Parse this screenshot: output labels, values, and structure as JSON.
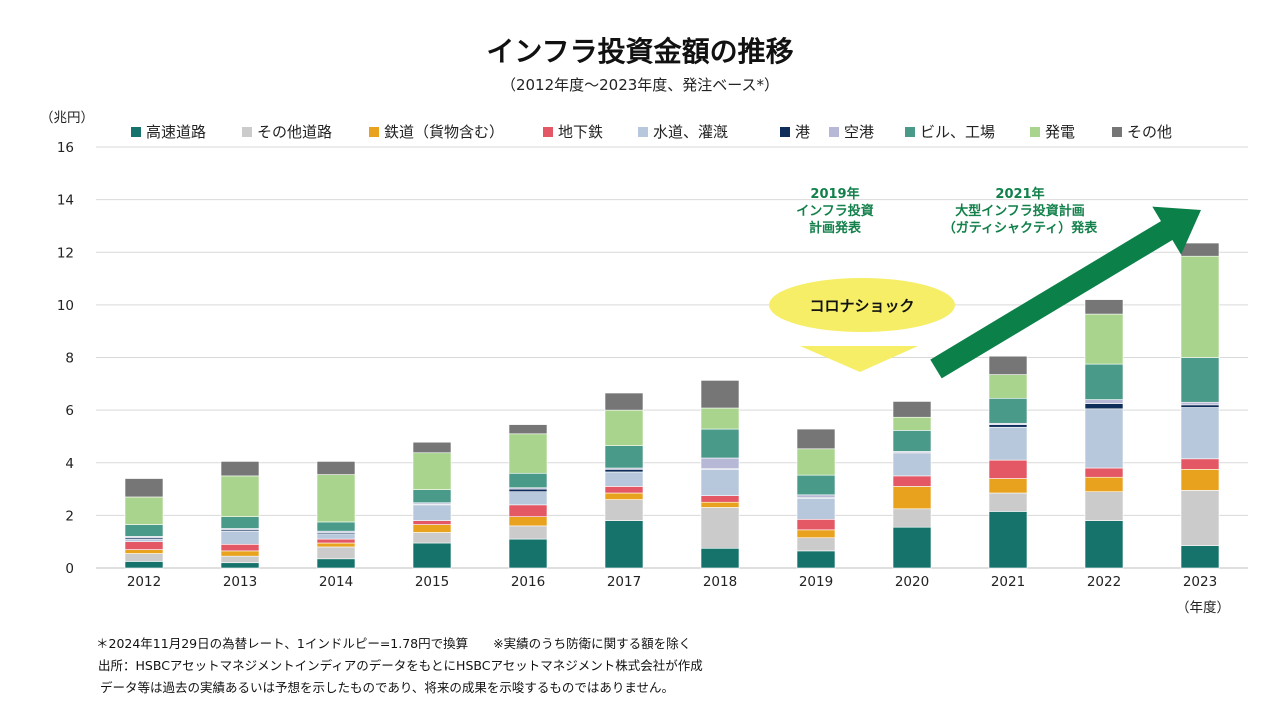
{
  "title": "インフラ投資金額の推移",
  "subtitle": "（2012年度～2023年度、発注ベース*）",
  "chart_data": {
    "type": "bar",
    "stacked": true,
    "ylabel": "（兆円）",
    "xlabel": "（年度）",
    "ylim": [
      0,
      16
    ],
    "yticks": [
      "0",
      "2",
      "4",
      "6",
      "8",
      "10",
      "12",
      "14",
      "16"
    ],
    "grid": true,
    "legend_position": "top",
    "categories": [
      "2012",
      "2013",
      "2014",
      "2015",
      "2016",
      "2017",
      "2018",
      "2019",
      "2020",
      "2021",
      "2022",
      "2023"
    ],
    "series": [
      {
        "name": "高速道路",
        "color": "#15736b",
        "values": [
          0.25,
          0.2,
          0.35,
          0.95,
          1.1,
          1.8,
          0.75,
          0.65,
          1.55,
          2.15,
          1.8,
          0.85
        ]
      },
      {
        "name": "その他道路",
        "color": "#cbcbcb",
        "values": [
          0.3,
          0.25,
          0.45,
          0.4,
          0.5,
          0.8,
          1.55,
          0.5,
          0.7,
          0.7,
          1.1,
          2.1
        ]
      },
      {
        "name": "鉄道（貨物含む）",
        "color": "#e8a21e",
        "values": [
          0.15,
          0.2,
          0.15,
          0.3,
          0.35,
          0.25,
          0.2,
          0.3,
          0.85,
          0.55,
          0.55,
          0.8
        ]
      },
      {
        "name": "地下鉄",
        "color": "#e45865",
        "values": [
          0.3,
          0.25,
          0.15,
          0.15,
          0.45,
          0.25,
          0.25,
          0.4,
          0.4,
          0.7,
          0.35,
          0.4
        ]
      },
      {
        "name": "水道、灌漑",
        "color": "#b7c8dc",
        "values": [
          0.1,
          0.5,
          0.2,
          0.6,
          0.5,
          0.55,
          1.0,
          0.8,
          0.85,
          1.25,
          2.25,
          1.95
        ]
      },
      {
        "name": "港",
        "color": "#0f2d5b",
        "values": [
          0.05,
          0.05,
          0.05,
          0.03,
          0.1,
          0.1,
          0.03,
          0.03,
          0.03,
          0.1,
          0.2,
          0.1
        ]
      },
      {
        "name": "空港",
        "color": "#b7b7d6",
        "values": [
          0.05,
          0.05,
          0.05,
          0.05,
          0.05,
          0.05,
          0.4,
          0.1,
          0.05,
          0.05,
          0.15,
          0.1
        ]
      },
      {
        "name": "ビル、工場",
        "color": "#4a9a8a",
        "values": [
          0.45,
          0.45,
          0.35,
          0.5,
          0.55,
          0.85,
          1.1,
          0.75,
          0.8,
          0.95,
          1.35,
          1.7
        ]
      },
      {
        "name": "発電",
        "color": "#a8d48d",
        "values": [
          1.05,
          1.55,
          1.8,
          1.4,
          1.5,
          1.35,
          0.8,
          1.0,
          0.5,
          0.9,
          1.9,
          3.85
        ]
      },
      {
        "name": "その他",
        "color": "#767676",
        "values": [
          0.7,
          0.55,
          0.5,
          0.4,
          0.35,
          0.65,
          1.05,
          0.75,
          0.6,
          0.7,
          0.55,
          0.5
        ]
      }
    ],
    "annotations": {
      "covid": "コロナショック",
      "plan2019": [
        "2019年",
        "インフラ投資",
        "計画発表"
      ],
      "plan2021": [
        "2021年",
        "大型インフラ投資計画",
        "（ガティシャクティ）発表"
      ]
    }
  },
  "notes": {
    "line1": "＊2024年11月29日の為替レート、1インドルピー=1.78円で換算　　※実績のうち防衛に関する額を除く",
    "line2": "出所：HSBCアセットマネジメントインディアのデータをもとにHSBCアセットマネジメント株式会社が作成",
    "line3": "データ等は過去の実績あるいは予想を示したものであり、将来の成果を示唆するものではありません。"
  }
}
